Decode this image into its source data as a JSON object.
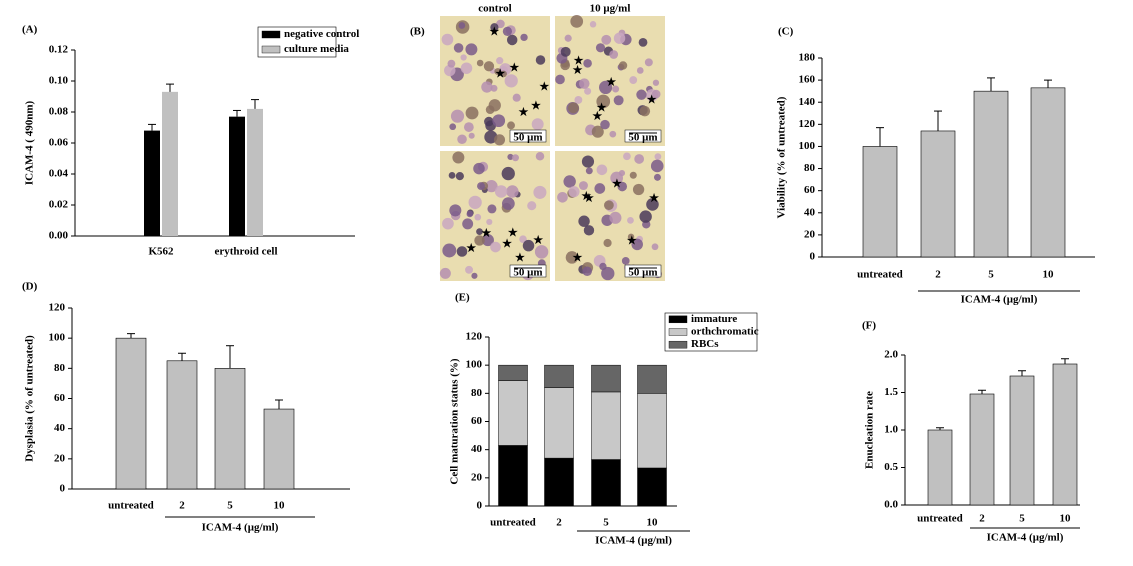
{
  "chart_data": [
    {
      "type": "grouped_bar",
      "title": "(A)",
      "ylabel": "ICAM-4 ( 490nm)",
      "categories": [
        "K562",
        "erythroid cell"
      ],
      "series": [
        {
          "name": "negative control",
          "color": "#000000",
          "values": [
            0.068,
            0.077
          ],
          "errors": [
            0.004,
            0.004
          ]
        },
        {
          "name": "culture media",
          "color": "#c0c0c0",
          "values": [
            0.093,
            0.082
          ],
          "errors": [
            0.005,
            0.006
          ]
        }
      ],
      "ylim": [
        0,
        0.12
      ],
      "yticks": [
        {
          "value": 0,
          "label": "0.00"
        },
        0.02,
        0.04,
        0.06,
        0.08,
        {
          "value": 0.1,
          "label": "0.10"
        },
        0.12
      ],
      "legend": "top-right"
    },
    {
      "type": "image",
      "title": "(B)",
      "columns": [
        "control",
        "10 μg/ml"
      ],
      "scale_labels": [
        "50 μm",
        "50 μm",
        "50 μm",
        "50 μm"
      ]
    },
    {
      "type": "bar",
      "title": "(C)",
      "ylabel": "Viability (% of untreated)",
      "categories": [
        "untreated",
        "2",
        "5",
        "10"
      ],
      "values": [
        100,
        114,
        150,
        153
      ],
      "errors": [
        17,
        18,
        12,
        7
      ],
      "color": "#c0c0c0",
      "group_label": "ICAM-4 (μg/ml)",
      "ylim": [
        0,
        180
      ],
      "yticks": [
        0,
        20,
        40,
        60,
        80,
        100,
        120,
        140,
        160,
        180
      ]
    },
    {
      "type": "bar",
      "title": "(D)",
      "ylabel": "Dysplasia (% of untreated)",
      "categories": [
        "untreated",
        "2",
        "5",
        "10"
      ],
      "values": [
        100,
        85,
        80,
        53
      ],
      "errors": [
        3,
        5,
        15,
        6
      ],
      "color": "#c0c0c0",
      "group_label": "ICAM-4 (μg/ml)",
      "ylim": [
        0,
        120
      ],
      "yticks": [
        0,
        20,
        40,
        60,
        80,
        100,
        120
      ]
    },
    {
      "type": "stacked_bar",
      "title": "(E)",
      "ylabel": "Cell maturation status (%)",
      "categories": [
        "untreated",
        "2",
        "5",
        "10"
      ],
      "series": [
        {
          "name": "immature",
          "color": "#000000",
          "values": [
            43,
            34,
            33,
            27
          ]
        },
        {
          "name": "orthchromatic",
          "color": "#c8c8c8",
          "values": [
            46,
            50,
            48,
            53
          ]
        },
        {
          "name": "RBCs",
          "color": "#666666",
          "values": [
            11,
            16,
            19,
            20
          ]
        }
      ],
      "group_label": "ICAM-4 (μg/ml)",
      "ylim": [
        0,
        120
      ],
      "yticks": [
        0,
        20,
        40,
        60,
        80,
        100,
        120
      ],
      "legend": "top-right"
    },
    {
      "type": "bar",
      "title": "(F)",
      "ylabel": "Enucleation rate",
      "categories": [
        "untreated",
        "2",
        "5",
        "10"
      ],
      "values": [
        1.0,
        1.48,
        1.72,
        1.88
      ],
      "errors": [
        0.03,
        0.05,
        0.07,
        0.07
      ],
      "color": "#c0c0c0",
      "group_label": "ICAM-4 (μg/ml)",
      "ylim": [
        0,
        2.0
      ],
      "yticks": [
        {
          "value": 0,
          "label": "0.0"
        },
        0.5,
        {
          "value": 1,
          "label": "1.0"
        },
        1.5,
        {
          "value": 2,
          "label": "2.0"
        }
      ]
    }
  ]
}
